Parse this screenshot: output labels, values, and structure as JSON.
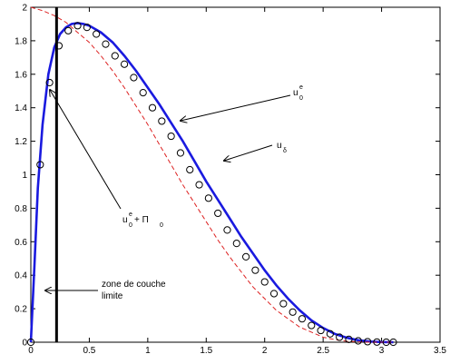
{
  "chart_data": {
    "type": "line",
    "title": "",
    "xlabel": "",
    "ylabel": "",
    "xlim": [
      0,
      3.5
    ],
    "ylim": [
      0,
      2
    ],
    "grid": false,
    "x_ticks": [
      "0",
      "0.5",
      "1",
      "1.5",
      "2",
      "2.5",
      "3",
      "3.5"
    ],
    "y_ticks": [
      "0",
      "0.2",
      "0.4",
      "0.6",
      "0.8",
      "1",
      "1.2",
      "1.4",
      "1.6",
      "1.8",
      "2"
    ],
    "series": [
      {
        "style": "solid",
        "color": "#1a1adf",
        "x": [
          0,
          0.03,
          0.06,
          0.1,
          0.15,
          0.2,
          0.25,
          0.3,
          0.35,
          0.4,
          0.45,
          0.5,
          0.6,
          0.7,
          0.8,
          0.9,
          1.0,
          1.1,
          1.2,
          1.3,
          1.4,
          1.5,
          1.6,
          1.7,
          1.8,
          1.9,
          2.0,
          2.1,
          2.2,
          2.3,
          2.4,
          2.5,
          2.6,
          2.7,
          2.8,
          2.9,
          3.0,
          3.1
        ],
        "y": [
          0,
          0.45,
          0.92,
          1.3,
          1.6,
          1.76,
          1.84,
          1.88,
          1.9,
          1.905,
          1.9,
          1.89,
          1.85,
          1.79,
          1.71,
          1.62,
          1.52,
          1.42,
          1.31,
          1.2,
          1.08,
          0.96,
          0.85,
          0.74,
          0.63,
          0.53,
          0.43,
          0.34,
          0.26,
          0.19,
          0.13,
          0.085,
          0.05,
          0.027,
          0.012,
          0.004,
          0.001,
          0
        ]
      },
      {
        "style": "dashed",
        "color": "#dd2222",
        "x": [
          0,
          0.1,
          0.2,
          0.3,
          0.4,
          0.5,
          0.6,
          0.7,
          0.8,
          0.9,
          1.0,
          1.1,
          1.2,
          1.3,
          1.4,
          1.5,
          1.6,
          1.7,
          1.8,
          1.9,
          2.0,
          2.1,
          2.2,
          2.3,
          2.4,
          2.5,
          2.6,
          2.7,
          2.8,
          2.9,
          3.0,
          3.1
        ],
        "y": [
          2.0,
          1.98,
          1.95,
          1.91,
          1.85,
          1.79,
          1.71,
          1.62,
          1.52,
          1.41,
          1.3,
          1.18,
          1.06,
          0.94,
          0.83,
          0.72,
          0.61,
          0.51,
          0.42,
          0.33,
          0.26,
          0.19,
          0.14,
          0.09,
          0.06,
          0.03,
          0.015,
          0.006,
          0.002,
          0.0,
          0.0,
          0.0
        ]
      },
      {
        "style": "circles",
        "color": "#000000",
        "x": [
          0,
          0.08,
          0.16,
          0.24,
          0.32,
          0.4,
          0.48,
          0.56,
          0.64,
          0.72,
          0.8,
          0.88,
          0.96,
          1.04,
          1.12,
          1.2,
          1.28,
          1.36,
          1.44,
          1.52,
          1.6,
          1.68,
          1.76,
          1.84,
          1.92,
          2.0,
          2.08,
          2.16,
          2.24,
          2.32,
          2.4,
          2.48,
          2.56,
          2.64,
          2.72,
          2.8,
          2.88,
          2.96,
          3.04,
          3.1
        ],
        "y": [
          0,
          1.06,
          1.55,
          1.77,
          1.86,
          1.89,
          1.88,
          1.84,
          1.78,
          1.71,
          1.66,
          1.58,
          1.49,
          1.4,
          1.32,
          1.23,
          1.13,
          1.03,
          0.94,
          0.86,
          0.77,
          0.67,
          0.59,
          0.51,
          0.43,
          0.36,
          0.29,
          0.23,
          0.18,
          0.14,
          0.1,
          0.07,
          0.05,
          0.03,
          0.017,
          0.008,
          0.003,
          0.001,
          0.0,
          0.0
        ]
      }
    ],
    "vertical_line_x": 0.22
  },
  "annotations": {
    "u0e": {
      "base": "u",
      "sub": "0",
      "sup": "e"
    },
    "udelta": {
      "base": "u",
      "sub": "δ"
    },
    "u0e_pi0": {
      "base": "u",
      "sub": "0",
      "sup": "e",
      "rest": " + Π",
      "rest_sub": "0"
    },
    "zone_line1": "zone de couche",
    "zone_line2": "limite"
  }
}
